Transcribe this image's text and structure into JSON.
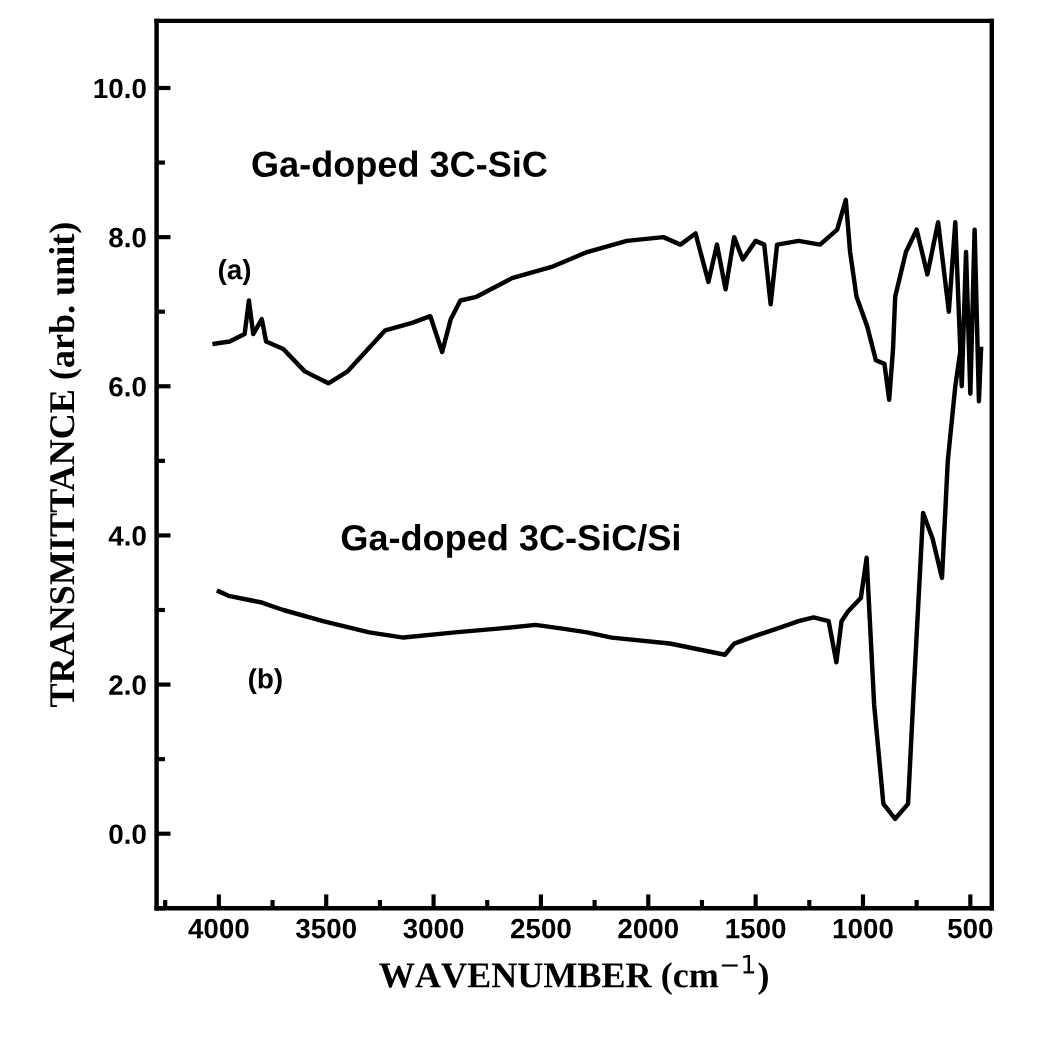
{
  "chart_data": {
    "type": "line",
    "xlabel": "WAVENUMBER (cm$^{−1}$)",
    "ylabel": "TRANSMITTANCE (arb. unit)",
    "xlim": [
      4290,
      400
    ],
    "ylim": [
      -1.0,
      10.9
    ],
    "xticks": [
      4000,
      3500,
      3000,
      2500,
      2000,
      1500,
      1000,
      500
    ],
    "yticks": [
      {
        "value": 0,
        "label": "0.0"
      },
      {
        "value": 2,
        "label": "2.0"
      },
      {
        "value": 4,
        "label": "4.0"
      },
      {
        "value": 6,
        "label": "6.0"
      },
      {
        "value": 8,
        "label": "8.0"
      },
      {
        "value": 10,
        "label": "10.0"
      }
    ],
    "grid": false,
    "legend": false,
    "line_style": "solid",
    "marker": "none",
    "series": [
      {
        "color": "#000000",
        "x": [
          4020,
          3950,
          3880,
          3860,
          3840,
          3800,
          3780,
          3700,
          3600,
          3490,
          3400,
          3225,
          3100,
          3015,
          2960,
          2920,
          2875,
          2800,
          2635,
          2450,
          2285,
          2100,
          1930,
          1850,
          1780,
          1720,
          1680,
          1640,
          1600,
          1560,
          1500,
          1460,
          1430,
          1400,
          1300,
          1200,
          1120,
          1080,
          1060,
          1030,
          980,
          940,
          900,
          878,
          860,
          850,
          800,
          750,
          700,
          650,
          600,
          570,
          540,
          520,
          500,
          480,
          460,
          450
        ],
        "values": [
          6.57,
          6.6,
          6.7,
          7.15,
          6.7,
          6.9,
          6.6,
          6.5,
          6.2,
          6.04,
          6.2,
          6.75,
          6.85,
          6.94,
          6.46,
          6.9,
          7.15,
          7.2,
          7.45,
          7.6,
          7.8,
          7.95,
          8.0,
          7.9,
          8.05,
          7.4,
          7.9,
          7.3,
          8.0,
          7.7,
          7.95,
          7.9,
          7.1,
          7.9,
          7.95,
          7.9,
          8.1,
          8.5,
          7.8,
          7.2,
          6.8,
          6.35,
          6.3,
          5.82,
          6.5,
          7.2,
          7.8,
          8.1,
          7.5,
          8.2,
          7.0,
          8.2,
          6.0,
          7.8,
          5.9,
          8.1,
          5.8,
          6.5
        ]
      },
      {
        "color": "#000000",
        "x": [
          4000,
          3955,
          3800,
          3700,
          3515,
          3300,
          3140,
          2900,
          2700,
          2525,
          2400,
          2285,
          2170,
          1900,
          1643,
          1600,
          1495,
          1400,
          1300,
          1230,
          1160,
          1124,
          1100,
          1070,
          1010,
          983,
          948,
          905,
          850,
          790,
          764,
          720,
          676,
          632,
          605,
          570,
          540
        ],
        "values": [
          3.25,
          3.19,
          3.1,
          3.0,
          2.85,
          2.7,
          2.63,
          2.7,
          2.75,
          2.8,
          2.75,
          2.7,
          2.63,
          2.55,
          2.4,
          2.55,
          2.66,
          2.75,
          2.85,
          2.9,
          2.85,
          2.3,
          2.85,
          2.98,
          3.16,
          3.7,
          1.73,
          0.4,
          0.2,
          0.4,
          1.9,
          4.3,
          3.96,
          3.43,
          5.0,
          6.0,
          6.6
        ]
      }
    ],
    "annotations": [
      "Ga-doped 3C-SiC",
      "(a)",
      "Ga-doped 3C-SiC/Si",
      "(b)"
    ]
  }
}
